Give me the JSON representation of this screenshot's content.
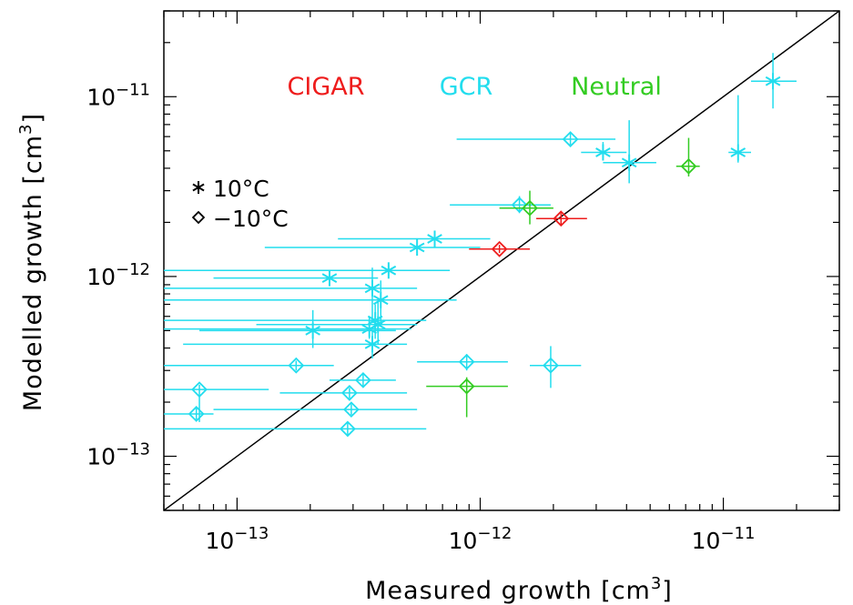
{
  "chart_data": {
    "type": "scatter",
    "xlabel": "Measured growth",
    "ylabel": "Modelled growth",
    "unit_base": "cm",
    "unit_exponent": "3",
    "x_scale": "log",
    "y_scale": "log",
    "xlim": [
      5e-14,
      3e-11
    ],
    "ylim": [
      5e-14,
      3e-11
    ],
    "x_ticks": [
      {
        "value": 1e-13,
        "base": "10",
        "exp": "−13"
      },
      {
        "value": 1e-12,
        "base": "10",
        "exp": "−12"
      },
      {
        "value": 1e-11,
        "base": "10",
        "exp": "−11"
      }
    ],
    "y_ticks": [
      {
        "value": 1e-13,
        "base": "10",
        "exp": "−13"
      },
      {
        "value": 1e-12,
        "base": "10",
        "exp": "−12"
      },
      {
        "value": 1e-11,
        "base": "10",
        "exp": "−11"
      }
    ],
    "reference_line": "y = x",
    "legend": [
      {
        "symbol": "asterisk",
        "label": "10°C"
      },
      {
        "symbol": "diamond",
        "label": "−10°C"
      }
    ],
    "categories": [
      {
        "name": "CIGAR",
        "color": "#ee1c1c"
      },
      {
        "name": "GCR",
        "color": "#22ddee"
      },
      {
        "name": "Neutral",
        "color": "#33cc22"
      }
    ],
    "series": [
      {
        "name": "GCR",
        "color": "#22ddee",
        "points": [
          {
            "x": 1.6e-11,
            "y": 1.22e-11,
            "xlo": 1.3e-11,
            "xhi": 2e-11,
            "ylo": 8.6e-12,
            "yhi": 1.75e-11,
            "marker": "asterisk"
          },
          {
            "x": 1.15e-11,
            "y": 4.9e-12,
            "xlo": 1.05e-11,
            "xhi": 1.3e-11,
            "ylo": 4.3e-12,
            "yhi": 1.02e-11,
            "marker": "asterisk"
          },
          {
            "x": 4.1e-12,
            "y": 4.3e-12,
            "xlo": 3.2e-12,
            "xhi": 5.3e-12,
            "ylo": 3.3e-12,
            "yhi": 7.4e-12,
            "marker": "asterisk"
          },
          {
            "x": 3.2e-12,
            "y": 4.9e-12,
            "xlo": 2.6e-12,
            "xhi": 4e-12,
            "ylo": 4.5e-12,
            "yhi": 5.6e-12,
            "marker": "asterisk"
          },
          {
            "x": 6.5e-13,
            "y": 1.62e-12,
            "xlo": 2.6e-13,
            "xhi": 1.1e-12,
            "ylo": 1.45e-12,
            "yhi": 1.8e-12,
            "marker": "asterisk"
          },
          {
            "x": 5.5e-13,
            "y": 1.45e-12,
            "xlo": 1.3e-13,
            "xhi": 1e-12,
            "ylo": 1.35e-12,
            "yhi": 1.55e-12,
            "marker": "asterisk"
          },
          {
            "x": 2.4e-13,
            "y": 9.8e-13,
            "xlo": 8e-14,
            "xhi": 3.8e-13,
            "ylo": 9e-13,
            "yhi": 1.07e-12,
            "marker": "asterisk"
          },
          {
            "x": 4.2e-13,
            "y": 1.08e-12,
            "xlo": 5e-14,
            "xhi": 7.5e-13,
            "ylo": 1e-12,
            "yhi": 1.16e-12,
            "marker": "asterisk"
          },
          {
            "x": 3.6e-13,
            "y": 8.6e-13,
            "xlo": 5e-14,
            "xhi": 5.5e-13,
            "ylo": 5.5e-13,
            "yhi": 1.12e-12,
            "marker": "asterisk"
          },
          {
            "x": 3.9e-13,
            "y": 7.4e-13,
            "xlo": 5e-14,
            "xhi": 8e-13,
            "ylo": 5.5e-13,
            "yhi": 9.5e-13,
            "marker": "asterisk"
          },
          {
            "x": 3.7e-13,
            "y": 5.7e-13,
            "xlo": 5e-14,
            "xhi": 6e-13,
            "ylo": 4.5e-13,
            "yhi": 7e-13,
            "marker": "asterisk"
          },
          {
            "x": 3.8e-13,
            "y": 5.4e-13,
            "xlo": 1.2e-13,
            "xhi": 5.5e-13,
            "ylo": 4.2e-13,
            "yhi": 7.5e-13,
            "marker": "asterisk"
          },
          {
            "x": 3.5e-13,
            "y": 5.1e-13,
            "xlo": 5e-14,
            "xhi": 5.2e-13,
            "ylo": 4.5e-13,
            "yhi": 6e-13,
            "marker": "asterisk"
          },
          {
            "x": 2.05e-13,
            "y": 5e-13,
            "xlo": 7e-14,
            "xhi": 4.5e-13,
            "ylo": 4e-13,
            "yhi": 6.5e-13,
            "marker": "asterisk"
          },
          {
            "x": 3.6e-13,
            "y": 4.2e-13,
            "xlo": 6e-14,
            "xhi": 5e-13,
            "ylo": 3.5e-13,
            "yhi": 5e-13,
            "marker": "asterisk"
          },
          {
            "x": 2.35e-12,
            "y": 5.8e-12,
            "xlo": 8e-13,
            "xhi": 3.6e-12,
            "ylo": 5.4e-12,
            "yhi": 6.3e-12,
            "marker": "diamond"
          },
          {
            "x": 1.45e-12,
            "y": 2.5e-12,
            "xlo": 7.5e-13,
            "xhi": 1.95e-12,
            "ylo": 2.25e-12,
            "yhi": 2.8e-12,
            "marker": "diamond"
          },
          {
            "x": 1.95e-12,
            "y": 3.2e-13,
            "xlo": 1.6e-12,
            "xhi": 2.6e-12,
            "ylo": 2.4e-13,
            "yhi": 4.1e-13,
            "marker": "diamond"
          },
          {
            "x": 8.8e-13,
            "y": 3.35e-13,
            "xlo": 5.5e-13,
            "xhi": 1.3e-12,
            "ylo": 3e-13,
            "yhi": 3.7e-13,
            "marker": "diamond"
          },
          {
            "x": 1.75e-13,
            "y": 3.2e-13,
            "xlo": 5e-14,
            "xhi": 2.5e-13,
            "ylo": 3e-13,
            "yhi": 3.4e-13,
            "marker": "diamond"
          },
          {
            "x": 3.3e-13,
            "y": 2.65e-13,
            "xlo": 2.4e-13,
            "xhi": 4.5e-13,
            "ylo": 2.45e-13,
            "yhi": 2.9e-13,
            "marker": "diamond"
          },
          {
            "x": 2.9e-13,
            "y": 2.25e-13,
            "xlo": 1.5e-13,
            "xhi": 5e-13,
            "ylo": 2.1e-13,
            "yhi": 2.4e-13,
            "marker": "diamond"
          },
          {
            "x": 7e-14,
            "y": 2.35e-13,
            "xlo": 5e-14,
            "xhi": 1.35e-13,
            "ylo": 1.55e-13,
            "yhi": 2.5e-13,
            "marker": "diamond"
          },
          {
            "x": 2.95e-13,
            "y": 1.82e-13,
            "xlo": 8e-14,
            "xhi": 5.5e-13,
            "ylo": 1.7e-13,
            "yhi": 1.95e-13,
            "marker": "diamond"
          },
          {
            "x": 6.8e-14,
            "y": 1.72e-13,
            "xlo": 5e-14,
            "xhi": 8e-14,
            "ylo": 1.6e-13,
            "yhi": 1.85e-13,
            "marker": "diamond"
          },
          {
            "x": 2.85e-13,
            "y": 1.42e-13,
            "xlo": 5e-14,
            "xhi": 6e-13,
            "ylo": 1.3e-13,
            "yhi": 1.55e-13,
            "marker": "diamond"
          }
        ]
      },
      {
        "name": "CIGAR",
        "color": "#ee1c1c",
        "points": [
          {
            "x": 2.15e-12,
            "y": 2.1e-12,
            "xlo": 1.7e-12,
            "xhi": 2.75e-12,
            "ylo": 1.95e-12,
            "yhi": 2.25e-12,
            "marker": "diamond"
          },
          {
            "x": 1.2e-12,
            "y": 1.42e-12,
            "xlo": 9e-13,
            "xhi": 1.6e-12,
            "ylo": 1.35e-12,
            "yhi": 1.5e-12,
            "marker": "diamond"
          }
        ]
      },
      {
        "name": "Neutral",
        "color": "#33cc22",
        "points": [
          {
            "x": 7.2e-12,
            "y": 4.1e-12,
            "xlo": 6.4e-12,
            "xhi": 8e-12,
            "ylo": 3.6e-12,
            "yhi": 5.9e-12,
            "marker": "diamond"
          },
          {
            "x": 1.6e-12,
            "y": 2.4e-12,
            "xlo": 1.2e-12,
            "xhi": 2e-12,
            "ylo": 1.95e-12,
            "yhi": 3e-12,
            "marker": "diamond"
          },
          {
            "x": 8.8e-13,
            "y": 2.45e-13,
            "xlo": 6e-13,
            "xhi": 1.3e-12,
            "ylo": 1.65e-13,
            "yhi": 2.75e-13,
            "marker": "diamond"
          }
        ]
      }
    ]
  }
}
